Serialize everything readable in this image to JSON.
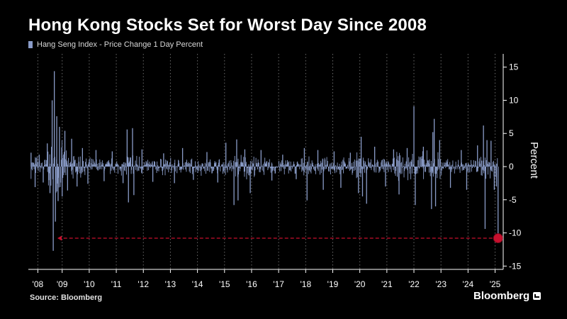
{
  "title": "Hong Kong Stocks Set for Worst Day Since 2008",
  "source": "Source: Bloomberg",
  "brand": "Bloomberg",
  "chart_data": {
    "type": "bar",
    "series_name": "Hang Seng Index - Price Change 1 Day Percent",
    "xlabel": "",
    "ylabel": "Percent",
    "y_axis_side": "right",
    "ylim": [
      -15.5,
      17
    ],
    "y_ticks": [
      15,
      10,
      5,
      0,
      -5,
      -10,
      -15
    ],
    "x_range": [
      2007.9,
      2025.45
    ],
    "x_ticks": [
      {
        "label": "'08",
        "year": 2008.25
      },
      {
        "label": "'09",
        "year": 2009.15
      },
      {
        "label": "'10",
        "year": 2010.15
      },
      {
        "label": "'11",
        "year": 2011.15
      },
      {
        "label": "'12",
        "year": 2012.15
      },
      {
        "label": "'13",
        "year": 2013.15
      },
      {
        "label": "'14",
        "year": 2014.15
      },
      {
        "label": "'15",
        "year": 2015.15
      },
      {
        "label": "'16",
        "year": 2016.15
      },
      {
        "label": "'17",
        "year": 2017.15
      },
      {
        "label": "'18",
        "year": 2018.15
      },
      {
        "label": "'19",
        "year": 2019.15
      },
      {
        "label": "'20",
        "year": 2020.15
      },
      {
        "label": "'21",
        "year": 2021.15
      },
      {
        "label": "'22",
        "year": 2022.15
      },
      {
        "label": "'23",
        "year": 2023.15
      },
      {
        "label": "'24",
        "year": 2024.15
      },
      {
        "label": "'25",
        "year": 2025.15
      }
    ],
    "grid": "vertical-dotted",
    "values": [
      {
        "x": 2008.0,
        "y": 2.1
      },
      {
        "x": 2008.15,
        "y": -3.1
      },
      {
        "x": 2008.3,
        "y": 1.8
      },
      {
        "x": 2008.45,
        "y": -2.4
      },
      {
        "x": 2008.6,
        "y": 3.5
      },
      {
        "x": 2008.7,
        "y": -4.0
      },
      {
        "x": 2008.78,
        "y": 10.0
      },
      {
        "x": 2008.82,
        "y": -12.7
      },
      {
        "x": 2008.86,
        "y": 14.4
      },
      {
        "x": 2008.9,
        "y": -8.3
      },
      {
        "x": 2008.95,
        "y": 7.6
      },
      {
        "x": 2009.0,
        "y": -5.2
      },
      {
        "x": 2009.05,
        "y": 6.0
      },
      {
        "x": 2009.15,
        "y": -4.5
      },
      {
        "x": 2009.25,
        "y": 5.4
      },
      {
        "x": 2009.35,
        "y": -3.6
      },
      {
        "x": 2009.5,
        "y": 4.2
      },
      {
        "x": 2009.7,
        "y": -3.0
      },
      {
        "x": 2009.9,
        "y": 2.8
      },
      {
        "x": 2010.1,
        "y": -2.6
      },
      {
        "x": 2010.4,
        "y": 2.5
      },
      {
        "x": 2010.7,
        "y": -2.2
      },
      {
        "x": 2011.0,
        "y": 2.3
      },
      {
        "x": 2011.4,
        "y": -2.5
      },
      {
        "x": 2011.55,
        "y": 5.6
      },
      {
        "x": 2011.6,
        "y": -5.4
      },
      {
        "x": 2011.75,
        "y": 5.8
      },
      {
        "x": 2011.8,
        "y": -4.3
      },
      {
        "x": 2012.1,
        "y": 2.6
      },
      {
        "x": 2012.5,
        "y": -2.3
      },
      {
        "x": 2012.9,
        "y": 2.0
      },
      {
        "x": 2013.3,
        "y": -2.5
      },
      {
        "x": 2013.6,
        "y": 2.8
      },
      {
        "x": 2014.0,
        "y": -2.0
      },
      {
        "x": 2014.5,
        "y": 2.2
      },
      {
        "x": 2014.9,
        "y": -2.4
      },
      {
        "x": 2015.2,
        "y": 3.6
      },
      {
        "x": 2015.5,
        "y": -5.8
      },
      {
        "x": 2015.6,
        "y": 4.1
      },
      {
        "x": 2015.65,
        "y": -5.1
      },
      {
        "x": 2015.9,
        "y": 2.6
      },
      {
        "x": 2016.1,
        "y": -4.0
      },
      {
        "x": 2016.5,
        "y": 2.5
      },
      {
        "x": 2016.9,
        "y": -2.1
      },
      {
        "x": 2017.3,
        "y": 1.8
      },
      {
        "x": 2017.8,
        "y": -1.9
      },
      {
        "x": 2018.1,
        "y": 2.8
      },
      {
        "x": 2018.2,
        "y": -5.1
      },
      {
        "x": 2018.6,
        "y": 2.5
      },
      {
        "x": 2018.8,
        "y": -3.5
      },
      {
        "x": 2019.2,
        "y": 2.3
      },
      {
        "x": 2019.45,
        "y": -3.2
      },
      {
        "x": 2019.8,
        "y": 2.1
      },
      {
        "x": 2020.1,
        "y": -4.0
      },
      {
        "x": 2020.2,
        "y": 4.5
      },
      {
        "x": 2020.25,
        "y": -4.5
      },
      {
        "x": 2020.4,
        "y": -5.6
      },
      {
        "x": 2020.7,
        "y": 3.0
      },
      {
        "x": 2021.1,
        "y": -3.0
      },
      {
        "x": 2021.4,
        "y": 2.6
      },
      {
        "x": 2021.6,
        "y": -4.2
      },
      {
        "x": 2021.9,
        "y": 2.8
      },
      {
        "x": 2022.15,
        "y": 9.1
      },
      {
        "x": 2022.2,
        "y": -5.8
      },
      {
        "x": 2022.5,
        "y": 3.0
      },
      {
        "x": 2022.8,
        "y": -6.4
      },
      {
        "x": 2022.85,
        "y": 5.2
      },
      {
        "x": 2022.9,
        "y": 7.2
      },
      {
        "x": 2022.95,
        "y": -6.0
      },
      {
        "x": 2023.1,
        "y": 4.0
      },
      {
        "x": 2023.5,
        "y": -3.2
      },
      {
        "x": 2023.9,
        "y": 2.5
      },
      {
        "x": 2024.1,
        "y": -3.5
      },
      {
        "x": 2024.5,
        "y": 3.2
      },
      {
        "x": 2024.72,
        "y": 6.2
      },
      {
        "x": 2024.78,
        "y": -9.4
      },
      {
        "x": 2024.85,
        "y": 4.0
      },
      {
        "x": 2025.0,
        "y": 3.9
      },
      {
        "x": 2025.12,
        "y": -3.5
      },
      {
        "x": 2025.2,
        "y": -3.0
      },
      {
        "x": 2025.26,
        "y": -10.8
      }
    ],
    "annotation": {
      "style": "dashed-arrow-to-marker",
      "marker_value": -10.8,
      "arrow_from_year": 2025.26,
      "arrow_to_year": 2008.82,
      "color": "#c8102e"
    },
    "colors": {
      "series": "#8a9cc8",
      "annotation": "#c8102e",
      "axis": "#ffffff",
      "grid": "#6a6a6a"
    }
  }
}
